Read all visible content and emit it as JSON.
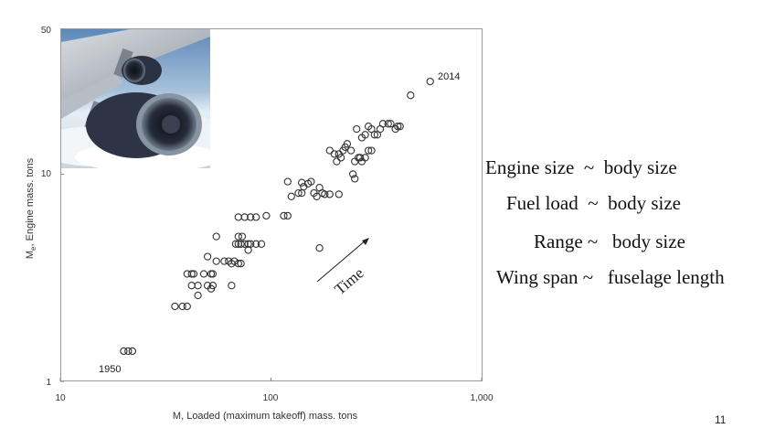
{
  "chart_data": {
    "type": "scatter",
    "title": "",
    "xlabel": "M, Loaded (maximum takeoff) mass. tons",
    "ylabel_parts": {
      "main": "M",
      "sub": "e",
      "rest": ", Engine mass. tons"
    },
    "xscale": "log",
    "yscale": "log",
    "xlim": [
      10,
      1000
    ],
    "ylim": [
      1,
      50
    ],
    "grid": false,
    "x_ticks": [
      10,
      100,
      1000
    ],
    "x_tick_labels": [
      "10",
      "100",
      "1,000"
    ],
    "y_ticks": [
      1,
      10,
      50
    ],
    "y_tick_labels": [
      "1",
      "10",
      "50"
    ],
    "annotations": {
      "start_year": "1950",
      "end_year": "2014",
      "trend": "Time"
    },
    "points": [
      [
        20,
        1.4
      ],
      [
        21,
        1.4
      ],
      [
        22,
        1.4
      ],
      [
        35,
        2.3
      ],
      [
        38,
        2.3
      ],
      [
        40,
        2.3
      ],
      [
        45,
        2.6
      ],
      [
        40,
        3.3
      ],
      [
        42,
        3.3
      ],
      [
        43,
        3.3
      ],
      [
        48,
        3.3
      ],
      [
        52,
        3.3
      ],
      [
        53,
        3.3
      ],
      [
        42,
        2.9
      ],
      [
        45,
        2.9
      ],
      [
        50,
        2.9
      ],
      [
        52,
        2.8
      ],
      [
        53,
        2.9
      ],
      [
        65,
        2.9
      ],
      [
        50,
        4.0
      ],
      [
        55,
        3.8
      ],
      [
        60,
        3.8
      ],
      [
        63,
        3.8
      ],
      [
        67,
        3.8
      ],
      [
        70,
        3.7
      ],
      [
        65,
        3.7
      ],
      [
        72,
        3.7
      ],
      [
        68,
        4.6
      ],
      [
        70,
        4.6
      ],
      [
        72,
        4.6
      ],
      [
        75,
        4.6
      ],
      [
        78,
        4.6
      ],
      [
        80,
        4.6
      ],
      [
        85,
        4.6
      ],
      [
        90,
        4.6
      ],
      [
        78,
        4.3
      ],
      [
        70,
        5.0
      ],
      [
        73,
        5.0
      ],
      [
        55,
        5.0
      ],
      [
        70,
        6.2
      ],
      [
        75,
        6.2
      ],
      [
        80,
        6.2
      ],
      [
        85,
        6.2
      ],
      [
        95,
        6.3
      ],
      [
        115,
        6.3
      ],
      [
        120,
        6.3
      ],
      [
        120,
        9.2
      ],
      [
        125,
        7.8
      ],
      [
        135,
        8.1
      ],
      [
        140,
        8.1
      ],
      [
        143,
        8.7
      ],
      [
        140,
        9.1
      ],
      [
        150,
        9.0
      ],
      [
        155,
        9.2
      ],
      [
        160,
        8.1
      ],
      [
        165,
        7.8
      ],
      [
        170,
        8.6
      ],
      [
        175,
        8.1
      ],
      [
        180,
        8.0
      ],
      [
        190,
        8.0
      ],
      [
        210,
        8.0
      ],
      [
        190,
        13.0
      ],
      [
        200,
        12.5
      ],
      [
        205,
        11.5
      ],
      [
        210,
        12.5
      ],
      [
        215,
        12.0
      ],
      [
        220,
        13.0
      ],
      [
        225,
        13.5
      ],
      [
        230,
        14.0
      ],
      [
        240,
        13.0
      ],
      [
        250,
        11.5
      ],
      [
        260,
        12.0
      ],
      [
        270,
        11.5
      ],
      [
        265,
        12.0
      ],
      [
        280,
        12.0
      ],
      [
        290,
        13.0
      ],
      [
        300,
        13.0
      ],
      [
        245,
        10.0
      ],
      [
        250,
        9.5
      ],
      [
        255,
        16.5
      ],
      [
        270,
        15.0
      ],
      [
        280,
        15.5
      ],
      [
        290,
        17.0
      ],
      [
        300,
        16.5
      ],
      [
        310,
        15.5
      ],
      [
        320,
        15.5
      ],
      [
        330,
        16.5
      ],
      [
        340,
        17.5
      ],
      [
        360,
        17.5
      ],
      [
        370,
        17.5
      ],
      [
        390,
        16.5
      ],
      [
        400,
        17.0
      ],
      [
        410,
        17.0
      ],
      [
        170,
        4.4
      ],
      [
        460,
        24.0
      ],
      [
        570,
        28.0
      ]
    ]
  },
  "notes": [
    "Engine size  ~  body size",
    "Fuel load  ~  body size",
    "Range ~   body size",
    "Wing span ~   fuselage length"
  ],
  "slide_number": "11"
}
